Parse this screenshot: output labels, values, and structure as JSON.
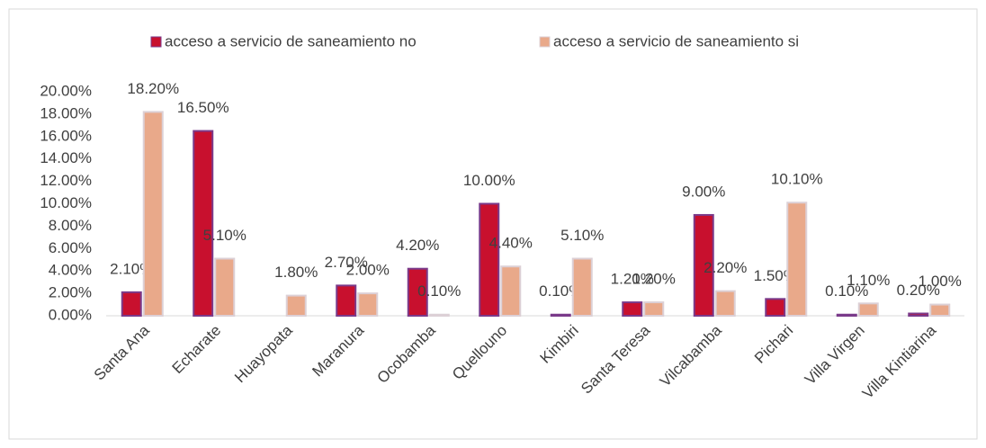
{
  "chart_data": {
    "type": "bar",
    "categories": [
      "Santa Ana",
      "Echarate",
      "Huayopata",
      "Maranura",
      "Ocobamba",
      "Quellouno",
      "Kimbiri",
      "Santa Teresa",
      "Vilcabamba",
      "Pichari",
      "Villa Virgen",
      "Villa Kintiarina"
    ],
    "series": [
      {
        "name": "acceso a servicio de saneamiento no",
        "color": "#c8102e",
        "stroke": "#7a3a8a",
        "values": [
          2.1,
          16.5,
          null,
          2.7,
          4.2,
          10.0,
          0.1,
          1.2,
          9.0,
          1.5,
          0.1,
          0.2
        ],
        "value_labels": [
          "2.10%",
          "16.50%",
          null,
          "2.70%",
          "4.20%",
          "10.00%",
          "0.10%",
          "1.20%",
          "9.00%",
          "1.50%",
          "0.10%",
          "0.20%"
        ]
      },
      {
        "name": "acceso a servicio de saneamiento si",
        "color": "#e9a98a",
        "stroke": "#dcd0d6",
        "values": [
          18.2,
          5.1,
          1.8,
          2.0,
          0.1,
          4.4,
          5.1,
          1.2,
          2.2,
          10.1,
          1.1,
          1.0
        ],
        "value_labels": [
          "18.20%",
          "5.10%",
          "1.80%",
          "2.00%",
          "0.10%",
          "4.40%",
          "5.10%",
          "1.20%",
          "2.20%",
          "10.10%",
          "1.10%",
          "1.00%"
        ]
      }
    ],
    "ylim": [
      0,
      20
    ],
    "yticks": [
      {
        "value": 0,
        "label": "0.00%"
      },
      {
        "value": 2,
        "label": "2.00%"
      },
      {
        "value": 4,
        "label": "4.00%"
      },
      {
        "value": 6,
        "label": "6.00%"
      },
      {
        "value": 8,
        "label": "8.00%"
      },
      {
        "value": 10,
        "label": "10.00%"
      },
      {
        "value": 12,
        "label": "12.00%"
      },
      {
        "value": 14,
        "label": "14.00%"
      },
      {
        "value": 16,
        "label": "16.00%"
      },
      {
        "value": 18,
        "label": "18.00%"
      },
      {
        "value": 20,
        "label": "20.00%"
      }
    ],
    "legend": "top"
  }
}
